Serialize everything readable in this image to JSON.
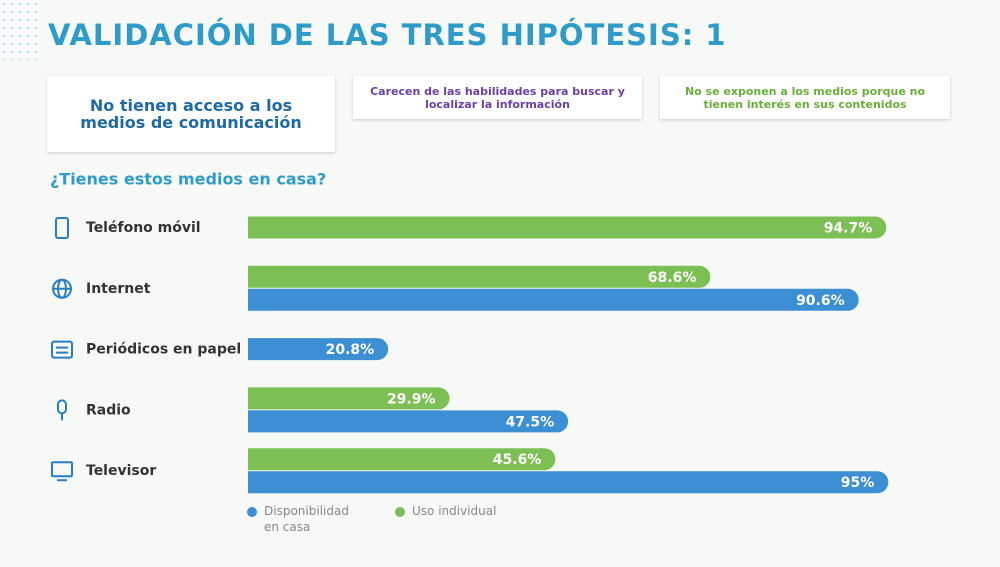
{
  "header": {
    "title": "VALIDACIÓN DE LAS TRES HIPÓTESIS: 1"
  },
  "hypotheses": [
    "No tienen acceso a los medios de comunicación",
    "Carecen de las habilidades para buscar y localizar la información",
    "No se exponen a los medios porque no tienen interés en sus contenidos"
  ],
  "chart_data": {
    "type": "hbar",
    "title": "¿Tienes estos medios en casa?",
    "categories": [
      "Teléfono móvil",
      "Internet",
      "Periódicos en papel",
      "Radio",
      "Televisor"
    ],
    "xlim": [
      0,
      100
    ],
    "series": [
      {
        "name": "Disponibilidad en casa",
        "color": "#3b8fd2",
        "values": [
          null,
          90.6,
          20.8,
          47.5,
          95
        ],
        "value_labels": [
          null,
          "90.6%",
          "20.8%",
          "47.5%",
          "95%"
        ]
      },
      {
        "name": "Uso individual",
        "color": "#7cbf55",
        "values": [
          94.7,
          68.6,
          null,
          29.9,
          45.6
        ],
        "value_labels": [
          "94.7%",
          "68.6%",
          null,
          "29.9%",
          "45.6%"
        ]
      }
    ]
  }
}
